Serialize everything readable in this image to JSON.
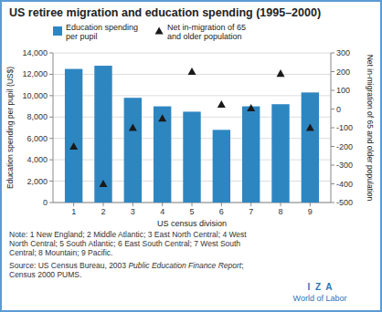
{
  "chart_data": {
    "type": "bar",
    "title": "US retiree migration and education spending (1995–2000)",
    "x": [
      1,
      2,
      3,
      4,
      5,
      6,
      7,
      8,
      9
    ],
    "xlim": [
      0.3,
      9.7
    ],
    "xticks": [
      1,
      2,
      3,
      4,
      5,
      6,
      7,
      8,
      9
    ],
    "x_label": "US census division",
    "y_label": "Education spending per pupil (US$)",
    "y2_label": "Net in-migration of 65 and older population",
    "ylim": [
      0,
      14000
    ],
    "yticks": [
      0,
      {
        "value": 2000,
        "label": "2,000"
      },
      {
        "value": 4000,
        "label": "4,000"
      },
      {
        "value": 6000,
        "label": "6,000"
      },
      {
        "value": 8000,
        "label": "8,000"
      },
      {
        "value": 10000,
        "label": "10,000"
      },
      {
        "value": 12000,
        "label": "12,000"
      },
      {
        "value": 14000,
        "label": "14,000"
      }
    ],
    "y2lim": [
      -500,
      300
    ],
    "y2ticks": [
      -500,
      -400,
      -300,
      -200,
      -100,
      0,
      100,
      200,
      300
    ],
    "grid": true,
    "legend": "top",
    "series": [
      {
        "name": "Education spending\nper pupil",
        "type": "bar",
        "color": "#2E86C1",
        "values": [
          12500,
          12800,
          9800,
          9000,
          8500,
          6800,
          9000,
          9200,
          10300
        ]
      },
      {
        "name": "Net in-migration of 65\nand older population",
        "type": "scatter",
        "marker": "triangle",
        "axis": "y2",
        "color": "#1a1a1a",
        "values": [
          -200,
          -400,
          -100,
          -50,
          200,
          25,
          5,
          190,
          -100
        ]
      }
    ],
    "annotations": [
      "Note: 1 New England; 2 Middle Atlantic; 3 East North Central; 4 West\nNorth Central; 5 South Atlantic; 6 East South Central; 7 West South\nCentral; 8 Mountain; 9 Pacific.",
      "Source: US Census Bureau, 2003 ",
      "Public Education Finance Report",
      ";",
      "Census 2000 PUMS.",
      "I  Z  A",
      "World of Labor"
    ]
  }
}
